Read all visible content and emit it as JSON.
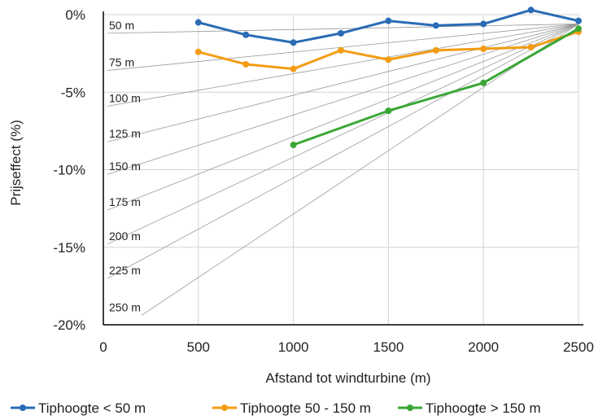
{
  "chart_data": {
    "type": "line",
    "xlabel": "Afstand tot windturbine (m)",
    "ylabel": "Prijseffect (%)",
    "xlim": [
      0,
      2500
    ],
    "ylim": [
      -20,
      0
    ],
    "x_ticks": [
      "0",
      "500",
      "1000",
      "1500",
      "2000",
      "2500"
    ],
    "y_ticks": [
      "0%",
      "-5%",
      "-10%",
      "-15%",
      "-20%"
    ],
    "grid": true,
    "legend_position": "bottom",
    "series": [
      {
        "name": "Tiphoogte < 50 m",
        "color": "#2a6cb5",
        "x": [
          500,
          750,
          1000,
          1250,
          1500,
          1750,
          2000,
          2250,
          2500
        ],
        "y": [
          -0.5,
          -1.3,
          -1.8,
          -1.2,
          -0.4,
          -0.7,
          -0.6,
          0.3,
          -0.4
        ]
      },
      {
        "name": "Tiphoogte 50 - 150 m",
        "color": "#f39c12",
        "x": [
          500,
          750,
          1000,
          1250,
          1500,
          1750,
          2000,
          2250,
          2500
        ],
        "y": [
          -2.4,
          -3.2,
          -3.5,
          -2.3,
          -2.9,
          -2.3,
          -2.2,
          -2.1,
          -1.1
        ]
      },
      {
        "name": "Tiphoogte > 150 m",
        "color": "#3aa635",
        "x": [
          1000,
          1500,
          2000,
          2500
        ],
        "y": [
          -8.4,
          -6.2,
          -4.4,
          -0.9
        ]
      }
    ],
    "reference_lines": {
      "converge_point": {
        "x": 2500,
        "y": -0.6
      },
      "labels": [
        "50 m",
        "75 m",
        "100 m",
        "125 m",
        "150 m",
        "175 m",
        "200 m",
        "225 m",
        "250 m"
      ],
      "start_points": [
        {
          "x": 0,
          "y": -1.2
        },
        {
          "x": 0,
          "y": -3.6
        },
        {
          "x": 0,
          "y": -5.9
        },
        {
          "x": 0,
          "y": -8.2
        },
        {
          "x": 0,
          "y": -10.3
        },
        {
          "x": 0,
          "y": -12.6
        },
        {
          "x": 0,
          "y": -14.8
        },
        {
          "x": 0,
          "y": -17.0
        },
        {
          "x": 200,
          "y": -19.4
        }
      ]
    }
  }
}
